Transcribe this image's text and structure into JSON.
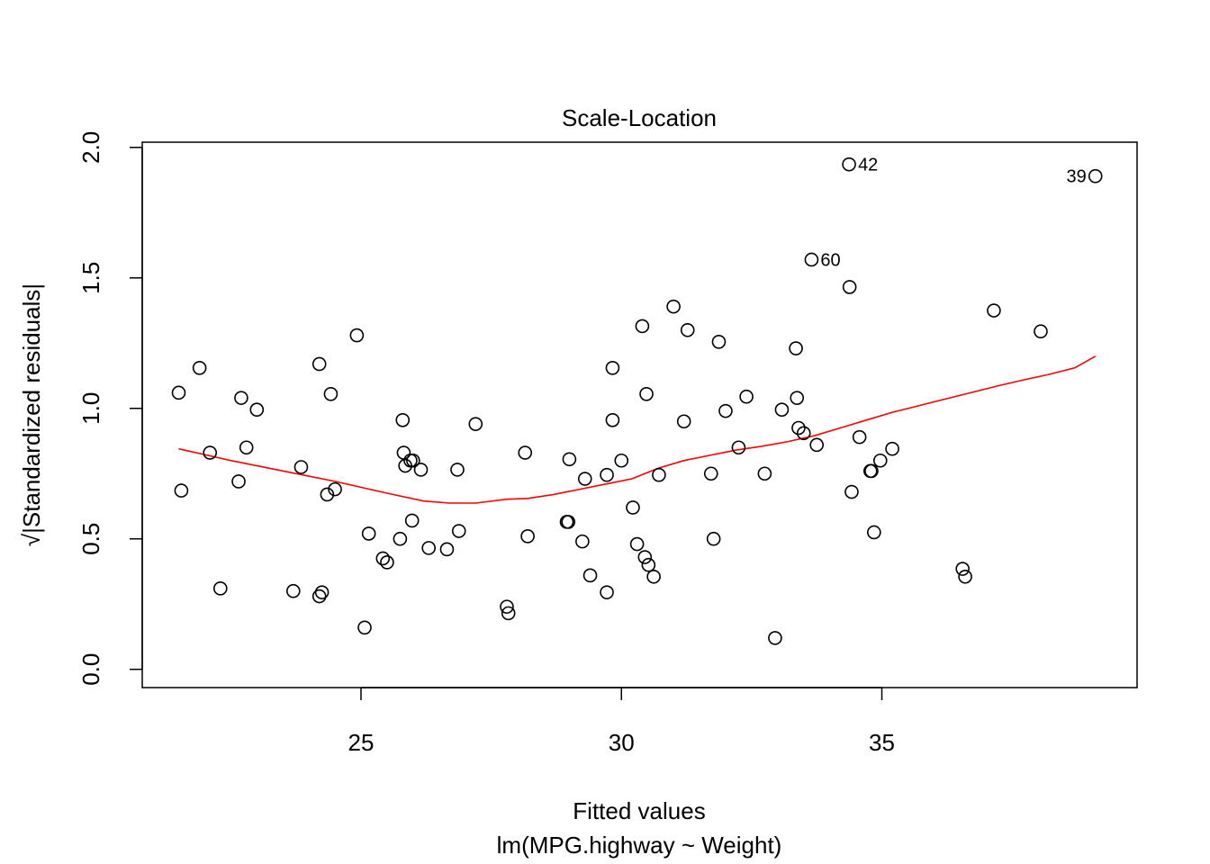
{
  "chart_data": {
    "type": "scatter",
    "title": "Scale-Location",
    "xlabel": "Fitted values",
    "subtitle": "lm(MPG.highway ~ Weight)",
    "ylabel": "√|Standardized residuals|",
    "xlim": [
      20.8,
      39.9
    ],
    "ylim": [
      -0.07,
      2.02
    ],
    "x_ticks": [
      25,
      30,
      35
    ],
    "y_ticks": [
      0.0,
      0.5,
      1.0,
      1.5,
      2.0
    ],
    "x_tick_labels": [
      "25",
      "30",
      "35"
    ],
    "y_tick_labels": [
      "0.0",
      "0.5",
      "1.0",
      "1.5",
      "2.0"
    ],
    "grid": false,
    "series": [
      {
        "marker": "open-circle",
        "color": "#000000",
        "points": [
          [
            21.5,
            1.06
          ],
          [
            21.55,
            0.685
          ],
          [
            21.9,
            1.155
          ],
          [
            22.1,
            0.83
          ],
          [
            22.3,
            0.31
          ],
          [
            22.65,
            0.72
          ],
          [
            22.7,
            1.04
          ],
          [
            22.8,
            0.85
          ],
          [
            23.0,
            0.995
          ],
          [
            23.7,
            0.3
          ],
          [
            23.85,
            0.775
          ],
          [
            24.2,
            1.17
          ],
          [
            24.2,
            0.28
          ],
          [
            24.25,
            0.295
          ],
          [
            24.35,
            0.67
          ],
          [
            24.42,
            1.055
          ],
          [
            24.5,
            0.69
          ],
          [
            24.92,
            1.28
          ],
          [
            25.07,
            0.16
          ],
          [
            25.15,
            0.52
          ],
          [
            25.42,
            0.425
          ],
          [
            25.5,
            0.41
          ],
          [
            25.75,
            0.5
          ],
          [
            25.8,
            0.955
          ],
          [
            25.82,
            0.83
          ],
          [
            25.85,
            0.78
          ],
          [
            25.95,
            0.8
          ],
          [
            25.98,
            0.57
          ],
          [
            26.0,
            0.8
          ],
          [
            26.15,
            0.765
          ],
          [
            26.3,
            0.465
          ],
          [
            26.65,
            0.46
          ],
          [
            26.85,
            0.765
          ],
          [
            26.88,
            0.53
          ],
          [
            27.2,
            0.94
          ],
          [
            27.8,
            0.24
          ],
          [
            27.83,
            0.215
          ],
          [
            28.15,
            0.83
          ],
          [
            28.2,
            0.51
          ],
          [
            28.95,
            0.565
          ],
          [
            28.98,
            0.565
          ],
          [
            29.0,
            0.805
          ],
          [
            29.25,
            0.49
          ],
          [
            29.3,
            0.73
          ],
          [
            29.4,
            0.36
          ],
          [
            29.72,
            0.295
          ],
          [
            29.72,
            0.745
          ],
          [
            29.83,
            1.155
          ],
          [
            29.83,
            0.955
          ],
          [
            30.0,
            0.8
          ],
          [
            30.22,
            0.62
          ],
          [
            30.3,
            0.48
          ],
          [
            30.4,
            1.315
          ],
          [
            30.45,
            0.43
          ],
          [
            30.48,
            1.055
          ],
          [
            30.52,
            0.4
          ],
          [
            30.62,
            0.355
          ],
          [
            30.72,
            0.745
          ],
          [
            31.0,
            1.39
          ],
          [
            31.2,
            0.95
          ],
          [
            31.27,
            1.3
          ],
          [
            31.72,
            0.75
          ],
          [
            31.77,
            0.5
          ],
          [
            31.87,
            1.255
          ],
          [
            32.0,
            0.99
          ],
          [
            32.25,
            0.85
          ],
          [
            32.4,
            1.045
          ],
          [
            32.75,
            0.75
          ],
          [
            32.95,
            0.12
          ],
          [
            33.08,
            0.995
          ],
          [
            33.35,
            1.23
          ],
          [
            33.37,
            1.04
          ],
          [
            33.4,
            0.925
          ],
          [
            33.5,
            0.905
          ],
          [
            33.65,
            1.57
          ],
          [
            33.75,
            0.86
          ],
          [
            34.37,
            1.935
          ],
          [
            34.38,
            1.465
          ],
          [
            34.42,
            0.68
          ],
          [
            34.57,
            0.89
          ],
          [
            34.78,
            0.76
          ],
          [
            34.8,
            0.76
          ],
          [
            34.85,
            0.525
          ],
          [
            34.97,
            0.8
          ],
          [
            35.2,
            0.845
          ],
          [
            36.55,
            0.385
          ],
          [
            36.6,
            0.355
          ],
          [
            37.15,
            1.375
          ],
          [
            38.05,
            1.295
          ],
          [
            39.1,
            1.89
          ]
        ]
      }
    ],
    "smoother": {
      "color": "#ff0000",
      "points": [
        [
          21.5,
          0.845
        ],
        [
          22.5,
          0.8
        ],
        [
          23.5,
          0.76
        ],
        [
          24.5,
          0.72
        ],
        [
          25.5,
          0.675
        ],
        [
          26.2,
          0.645
        ],
        [
          26.7,
          0.637
        ],
        [
          27.2,
          0.637
        ],
        [
          27.8,
          0.652
        ],
        [
          28.2,
          0.655
        ],
        [
          28.7,
          0.67
        ],
        [
          29.2,
          0.69
        ],
        [
          29.7,
          0.71
        ],
        [
          30.2,
          0.73
        ],
        [
          30.7,
          0.77
        ],
        [
          31.2,
          0.8
        ],
        [
          31.7,
          0.82
        ],
        [
          32.2,
          0.84
        ],
        [
          32.7,
          0.855
        ],
        [
          33.2,
          0.873
        ],
        [
          33.7,
          0.895
        ],
        [
          34.2,
          0.925
        ],
        [
          34.7,
          0.955
        ],
        [
          35.2,
          0.985
        ],
        [
          35.7,
          1.01
        ],
        [
          36.2,
          1.035
        ],
        [
          36.7,
          1.06
        ],
        [
          37.2,
          1.085
        ],
        [
          37.7,
          1.108
        ],
        [
          38.2,
          1.13
        ],
        [
          38.7,
          1.155
        ],
        [
          39.1,
          1.2
        ]
      ]
    },
    "annotations": [
      {
        "text": "42",
        "x": 34.37,
        "y": 1.935,
        "side": "right"
      },
      {
        "text": "60",
        "x": 33.65,
        "y": 1.57,
        "side": "right"
      },
      {
        "text": "39",
        "x": 39.1,
        "y": 1.89,
        "side": "left"
      }
    ]
  }
}
